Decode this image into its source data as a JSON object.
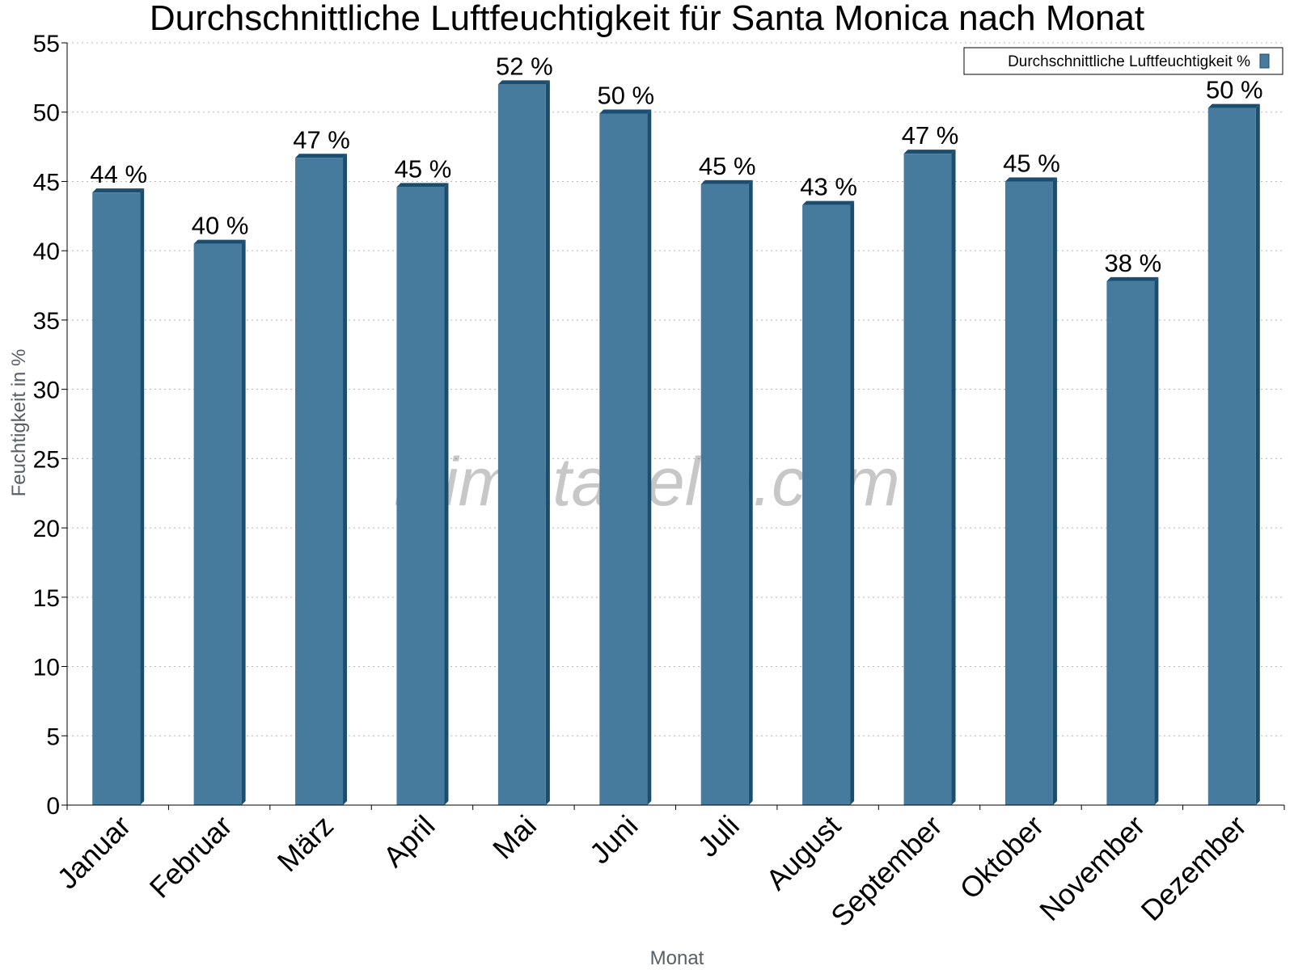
{
  "chart_data": {
    "type": "bar",
    "title": "Durchschnittliche Luftfeuchtigkeit für Santa Monica nach Monat",
    "xlabel": "Monat",
    "ylabel": "Feuchtigkeit in %",
    "ylim": [
      0,
      55
    ],
    "ytick_step": 5,
    "grid": true,
    "legend_position": "top-right",
    "categories": [
      "Januar",
      "Februar",
      "März",
      "April",
      "Mai",
      "Juni",
      "Juli",
      "August",
      "September",
      "Oktober",
      "November",
      "Dezember"
    ],
    "series": [
      {
        "name": "Durchschnittliche Luftfeuchtigkeit %",
        "values": [
          44.2,
          40.5,
          46.7,
          44.6,
          52.0,
          49.9,
          44.8,
          43.3,
          47.0,
          45.0,
          37.8,
          50.3
        ],
        "labels": [
          "44 %",
          "40 %",
          "47 %",
          "45 %",
          "52 %",
          "50 %",
          "45 %",
          "43 %",
          "47 %",
          "45 %",
          "38 %",
          "50 %"
        ],
        "color": "#467b9e",
        "side_color": "#1b4d6e"
      }
    ]
  },
  "watermark": "klimatabelle.com"
}
